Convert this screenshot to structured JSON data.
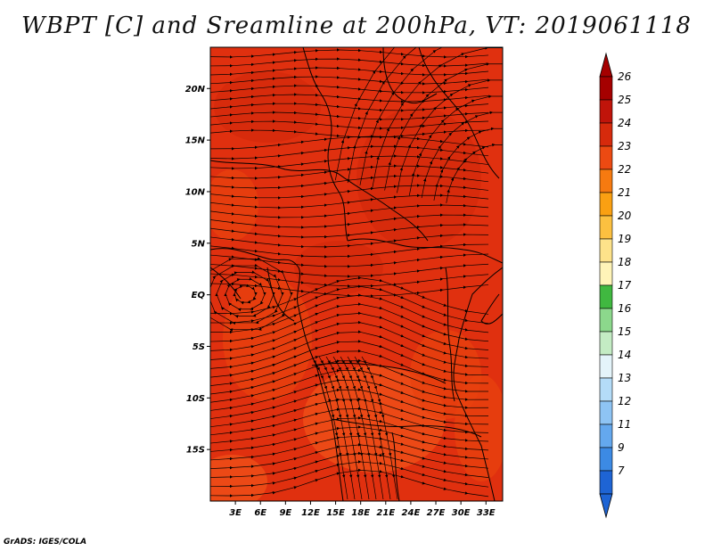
{
  "title": "WBPT [C] and Sreamline at 200hPa, VT: 2019061118",
  "credit": "GrADS: IGES/COLA",
  "map": {
    "lon_range": [
      0,
      35
    ],
    "lat_range": [
      -20,
      24
    ],
    "lon_ticks": [
      {
        "value": 3,
        "label": "3E"
      },
      {
        "value": 6,
        "label": "6E"
      },
      {
        "value": 9,
        "label": "9E"
      },
      {
        "value": 12,
        "label": "12E"
      },
      {
        "value": 15,
        "label": "15E"
      },
      {
        "value": 18,
        "label": "18E"
      },
      {
        "value": 21,
        "label": "21E"
      },
      {
        "value": 24,
        "label": "24E"
      },
      {
        "value": 27,
        "label": "27E"
      },
      {
        "value": 30,
        "label": "30E"
      },
      {
        "value": 33,
        "label": "33E"
      }
    ],
    "lat_ticks": [
      {
        "value": 20,
        "label": "20N"
      },
      {
        "value": 15,
        "label": "15N"
      },
      {
        "value": 10,
        "label": "10N"
      },
      {
        "value": 5,
        "label": "5N"
      },
      {
        "value": 0,
        "label": "EQ"
      },
      {
        "value": -5,
        "label": "5S"
      },
      {
        "value": -10,
        "label": "10S"
      },
      {
        "value": -15,
        "label": "15S"
      }
    ],
    "field_colors": [
      "#e0300f",
      "#d42a0c",
      "#e8420f",
      "#f0521a"
    ]
  },
  "colorbar": {
    "levels": [
      {
        "label": "26",
        "color": "#a50000"
      },
      {
        "label": "25",
        "color": "#c0140a"
      },
      {
        "label": "24",
        "color": "#d62a0c"
      },
      {
        "label": "23",
        "color": "#ec4a12"
      },
      {
        "label": "22",
        "color": "#f67a10"
      },
      {
        "label": "21",
        "color": "#faa012"
      },
      {
        "label": "20",
        "color": "#fcc040"
      },
      {
        "label": "19",
        "color": "#fde28a"
      },
      {
        "label": "18",
        "color": "#fff4b8"
      },
      {
        "label": "17",
        "color": "#40b840"
      },
      {
        "label": "16",
        "color": "#8cd88c"
      },
      {
        "label": "15",
        "color": "#c4ecc4"
      },
      {
        "label": "14",
        "color": "#e4f4fa"
      },
      {
        "label": "13",
        "color": "#b4dcf8"
      },
      {
        "label": "12",
        "color": "#8ec4f4"
      },
      {
        "label": "11",
        "color": "#64a8ee"
      },
      {
        "label": "9",
        "color": "#3c8ae4"
      },
      {
        "label": "7",
        "color": "#1e64d4"
      }
    ]
  }
}
